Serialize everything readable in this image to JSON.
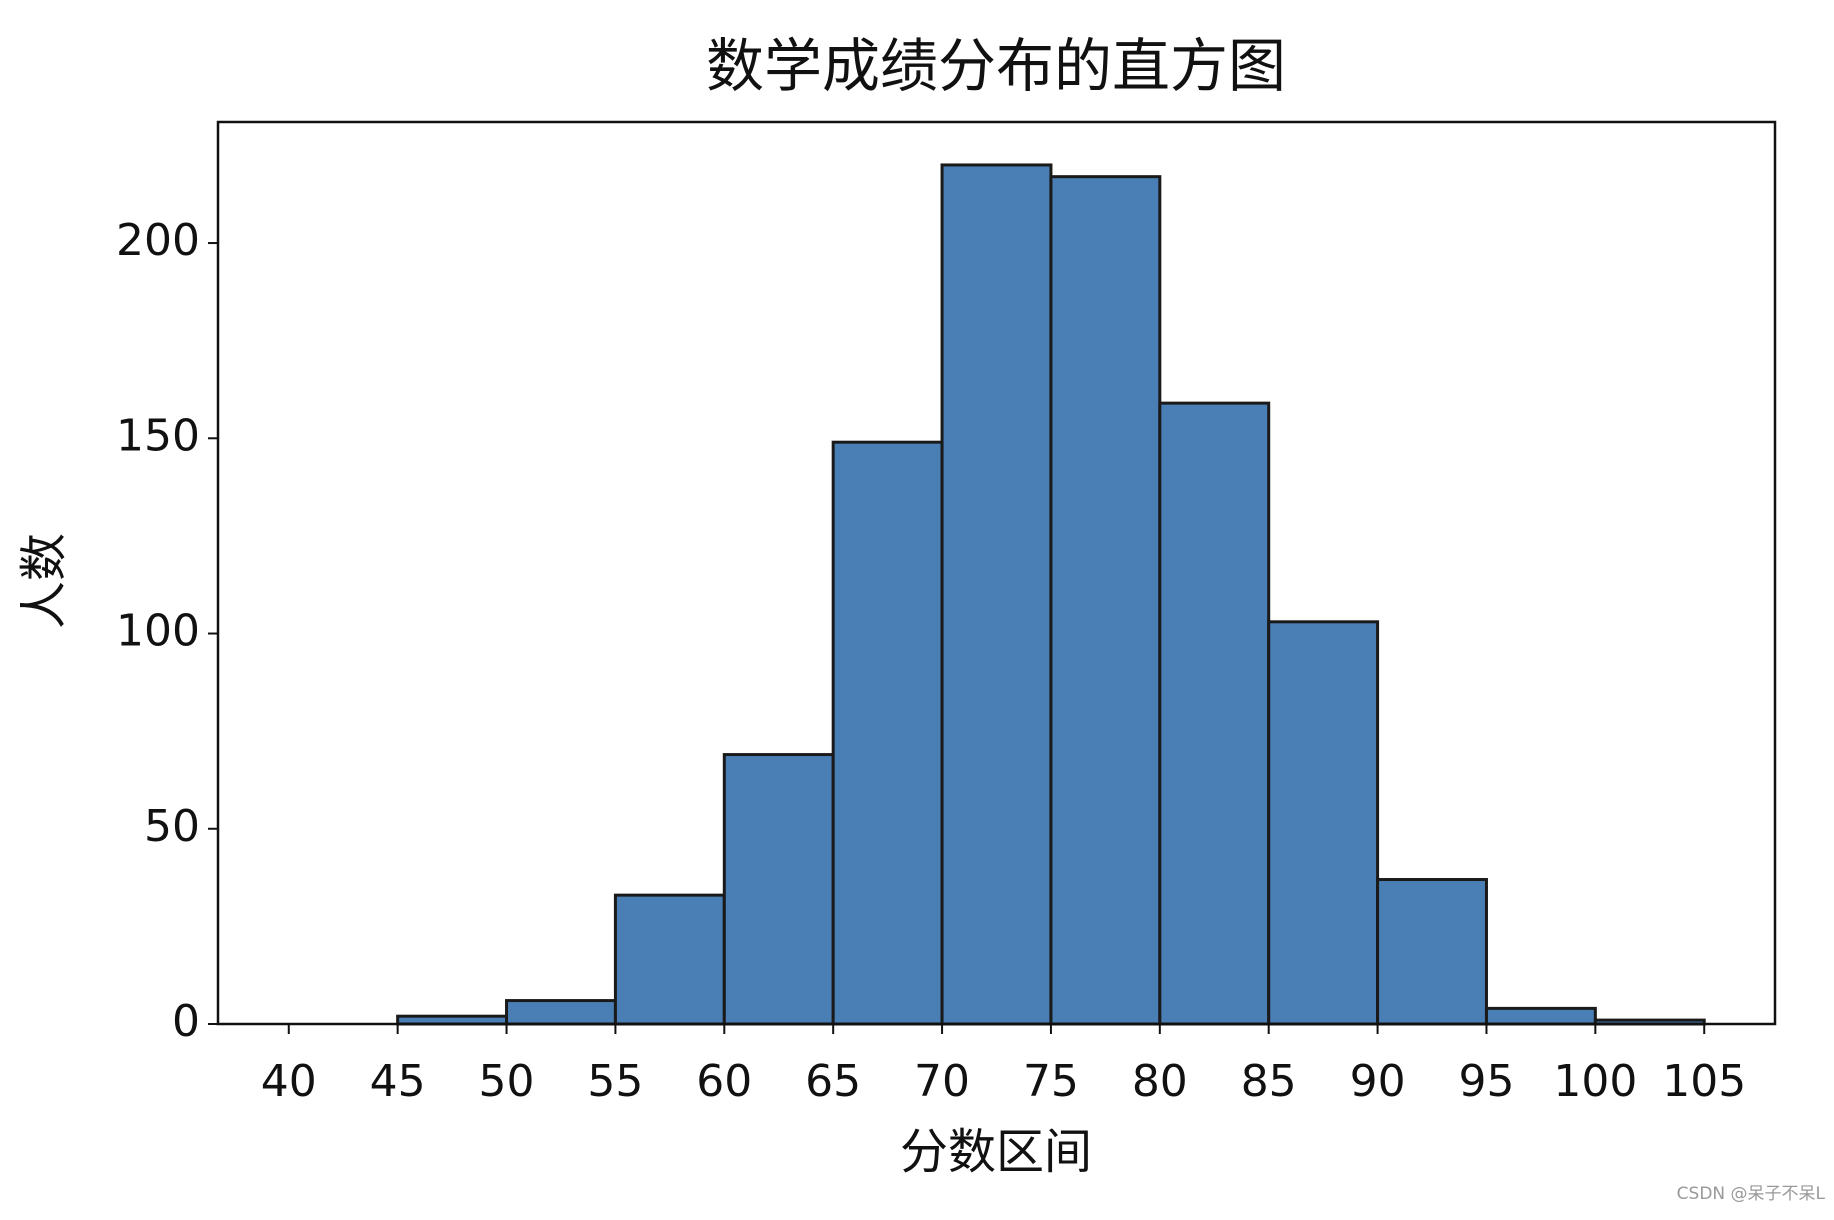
{
  "chart_data": {
    "type": "histogram",
    "title": "数学成绩分布的直方图",
    "xlabel": "分数区间",
    "ylabel": "人数",
    "bins": [
      40,
      45,
      50,
      55,
      60,
      65,
      70,
      75,
      80,
      85,
      90,
      95,
      100,
      105
    ],
    "counts": [
      0,
      2,
      6,
      33,
      69,
      149,
      220,
      217,
      159,
      103,
      37,
      4,
      1
    ],
    "color": "#4a7fb5",
    "edgecolor": "#1a1a1a",
    "xlim": [
      36.75,
      108.25
    ],
    "ylim": [
      0,
      231
    ],
    "xticks": [
      40,
      45,
      50,
      55,
      60,
      65,
      70,
      75,
      80,
      85,
      90,
      95,
      100,
      105
    ],
    "yticks": [
      0,
      50,
      100,
      150,
      200
    ],
    "grid": false
  },
  "watermark": "CSDN @呆子不呆L"
}
